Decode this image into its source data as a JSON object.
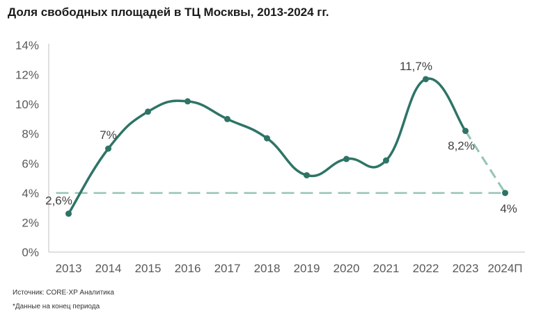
{
  "title": "Доля свободных площадей в ТЦ Москвы, 2013-2024 гг.",
  "source": "Источник: CORE·XP Аналитика",
  "note": "*Данные на конец периода",
  "colors": {
    "line": "#2e7466",
    "forecast": "#93c4b4",
    "reference": "#93c4b4",
    "axis": "#bfbfbf"
  },
  "chart_data": {
    "type": "line",
    "categories": [
      "2013",
      "2014",
      "2015",
      "2016",
      "2017",
      "2018",
      "2019",
      "2020",
      "2021",
      "2022",
      "2023",
      "2024П"
    ],
    "series": [
      {
        "name": "Доля свободных площадей",
        "values": [
          2.6,
          7.0,
          9.5,
          10.2,
          9.0,
          7.7,
          5.2,
          6.3,
          6.2,
          11.7,
          8.2,
          4.0
        ],
        "forecast_from_index": 10
      }
    ],
    "reference_line": {
      "value": 4.0,
      "style": "dashed"
    },
    "ylim": [
      0,
      14
    ],
    "yticks": [
      0,
      2,
      4,
      6,
      8,
      10,
      12,
      14
    ],
    "ytick_labels": [
      "0%",
      "2%",
      "4%",
      "6%",
      "8%",
      "10%",
      "12%",
      "14%"
    ],
    "data_labels": [
      {
        "index": 0,
        "text": "2,6%"
      },
      {
        "index": 1,
        "text": "7%"
      },
      {
        "index": 9,
        "text": "11,7%"
      },
      {
        "index": 10,
        "text": "8,2%"
      },
      {
        "index": 11,
        "text": "4%"
      }
    ],
    "xlabel": "",
    "ylabel": ""
  }
}
